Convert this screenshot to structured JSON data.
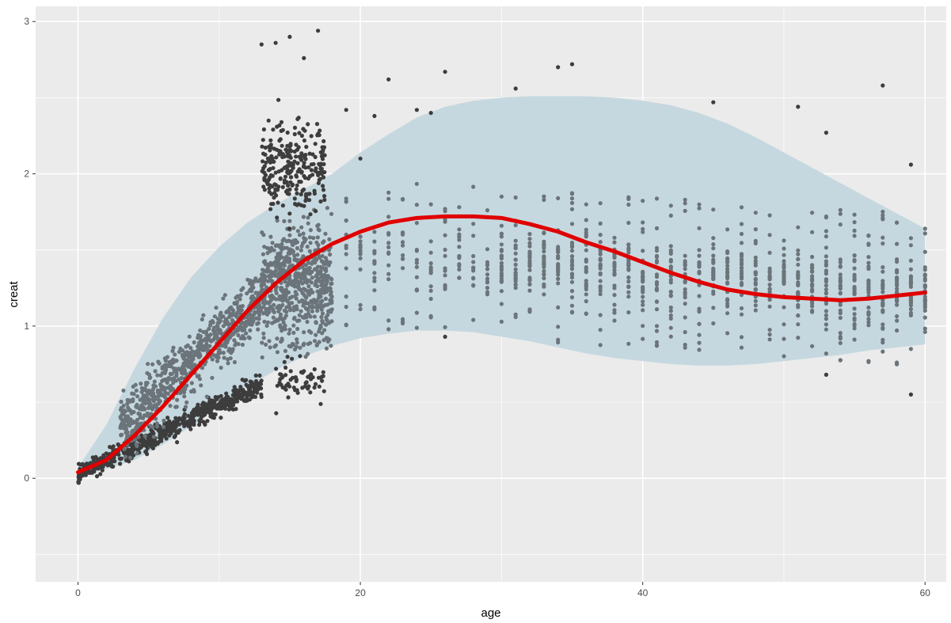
{
  "chart_data": {
    "type": "scatter",
    "title": "",
    "xlabel": "age",
    "ylabel": "creat",
    "xlim": [
      -3,
      61.5
    ],
    "ylim": [
      -0.68,
      3.1
    ],
    "x_ticks": [
      0,
      20,
      40,
      60
    ],
    "y_ticks": [
      0,
      1,
      2,
      3
    ],
    "x_tick_labels": [
      "0",
      "20",
      "40",
      "60"
    ],
    "y_tick_labels": [
      "0",
      "1",
      "2",
      "3"
    ],
    "grid": true,
    "legend": "none",
    "colors": {
      "panel_background": "#ebebeb",
      "grid": "#ffffff",
      "points_dark": "#3d3d3d",
      "points_light": "#6b747a",
      "ribbon": "#c6d8df",
      "curve": "#e00000"
    },
    "curve": {
      "x": [
        0,
        2,
        4,
        6,
        8,
        10,
        12,
        14,
        16,
        18,
        20,
        22,
        24,
        26,
        28,
        30,
        32,
        34,
        36,
        38,
        40,
        42,
        44,
        46,
        48,
        50,
        52,
        54,
        56,
        58,
        60
      ],
      "y": [
        0.04,
        0.12,
        0.28,
        0.47,
        0.68,
        0.89,
        1.1,
        1.28,
        1.43,
        1.54,
        1.62,
        1.68,
        1.71,
        1.72,
        1.72,
        1.71,
        1.67,
        1.62,
        1.55,
        1.49,
        1.42,
        1.35,
        1.29,
        1.24,
        1.21,
        1.19,
        1.18,
        1.17,
        1.18,
        1.2,
        1.22
      ]
    },
    "ribbon": {
      "x": [
        0,
        2,
        4,
        6,
        8,
        10,
        12,
        14,
        16,
        18,
        20,
        22,
        24,
        26,
        28,
        30,
        32,
        34,
        36,
        38,
        40,
        42,
        44,
        46,
        48,
        50,
        52,
        54,
        56,
        58,
        60
      ],
      "lower": [
        0.02,
        0.06,
        0.12,
        0.22,
        0.34,
        0.47,
        0.6,
        0.71,
        0.8,
        0.87,
        0.92,
        0.95,
        0.97,
        0.97,
        0.96,
        0.93,
        0.9,
        0.86,
        0.82,
        0.79,
        0.77,
        0.75,
        0.74,
        0.74,
        0.75,
        0.77,
        0.79,
        0.81,
        0.84,
        0.86,
        0.88
      ],
      "upper": [
        0.07,
        0.35,
        0.72,
        1.05,
        1.32,
        1.52,
        1.68,
        1.8,
        1.9,
        2.0,
        2.14,
        2.26,
        2.37,
        2.44,
        2.48,
        2.5,
        2.51,
        2.51,
        2.51,
        2.5,
        2.48,
        2.45,
        2.4,
        2.33,
        2.24,
        2.14,
        2.04,
        1.94,
        1.84,
        1.74,
        1.64
      ]
    }
  }
}
